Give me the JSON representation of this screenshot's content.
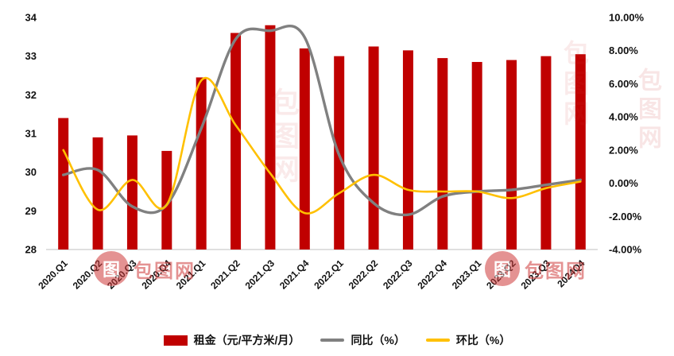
{
  "watermark": {
    "text": "包图网",
    "logo_char": "图"
  },
  "chart_data": {
    "type": "bar",
    "title": "",
    "xlabel": "",
    "ylabel_left": "",
    "ylabel_right": "",
    "grid": false,
    "legend_position": "bottom",
    "categories": [
      "2020.Q1",
      "2020.Q2",
      "2020.Q3",
      "2020.Q4",
      "2021.Q1",
      "2021.Q2",
      "2021.Q3",
      "2021.Q4",
      "2022.Q1",
      "2022.Q2",
      "2022.Q3",
      "2022.Q4",
      "2023.Q1",
      "2023.Q2",
      "2023.Q3",
      "2024Q4"
    ],
    "bar_series": {
      "name": "租金（元/平方米/月）",
      "color": "#C00000",
      "axis": "left",
      "values": [
        31.4,
        30.9,
        30.95,
        30.55,
        32.45,
        33.6,
        33.8,
        33.2,
        33.0,
        33.25,
        33.15,
        32.95,
        32.85,
        32.9,
        33.0,
        33.05
      ]
    },
    "line_series": [
      {
        "name": "同比（%）",
        "color": "#808080",
        "axis": "right",
        "values": [
          0.5,
          0.8,
          -1.4,
          -1.3,
          3.3,
          8.7,
          9.2,
          8.8,
          1.7,
          -1.2,
          -1.9,
          -0.8,
          -0.5,
          -0.4,
          -0.1,
          0.2
        ]
      },
      {
        "name": "环比（%）",
        "color": "#FFC000",
        "axis": "right",
        "values": [
          2.0,
          -1.6,
          0.2,
          -1.3,
          6.2,
          3.5,
          0.6,
          -1.8,
          -0.6,
          0.5,
          -0.4,
          -0.5,
          -0.5,
          -0.9,
          -0.3,
          0.1
        ]
      }
    ],
    "left_axis": {
      "min": 28,
      "max": 34,
      "ticks": [
        28,
        29,
        30,
        31,
        32,
        33,
        34
      ]
    },
    "right_axis": {
      "min": -4,
      "max": 10,
      "tick_step": 2,
      "ticks": [
        "-4.00%",
        "-2.00%",
        "0.00%",
        "2.00%",
        "4.00%",
        "6.00%",
        "8.00%",
        "10.00%"
      ]
    },
    "legend": [
      {
        "label": "租金（元/平方米/月）",
        "type": "bar",
        "color": "#C00000"
      },
      {
        "label": "同比（%）",
        "type": "line",
        "color": "#808080"
      },
      {
        "label": "环比（%）",
        "type": "line",
        "color": "#FFC000"
      }
    ]
  }
}
